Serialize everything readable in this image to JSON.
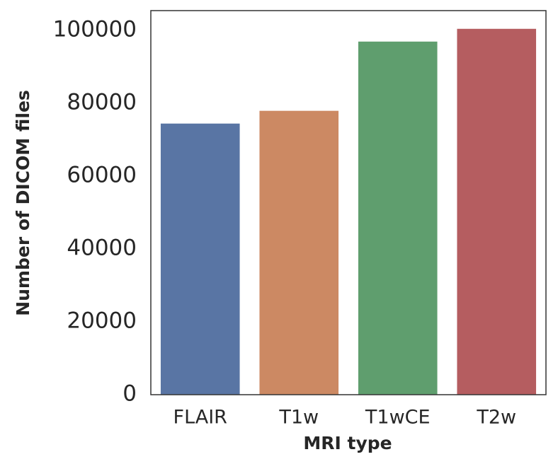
{
  "chart_data": {
    "type": "bar",
    "x_label": "MRI type",
    "y_label": "Number of DICOM files",
    "categories": [
      "FLAIR",
      "T1w",
      "T1wCE",
      "T2w"
    ],
    "values": [
      74400,
      77900,
      96900,
      100400
    ],
    "colors": [
      "#5975a4",
      "#cc8963",
      "#5f9e6e",
      "#b55d60"
    ],
    "ylim": [
      0,
      105400
    ],
    "yticks": [
      0,
      20000,
      40000,
      60000,
      80000,
      100000
    ],
    "grid": false
  }
}
